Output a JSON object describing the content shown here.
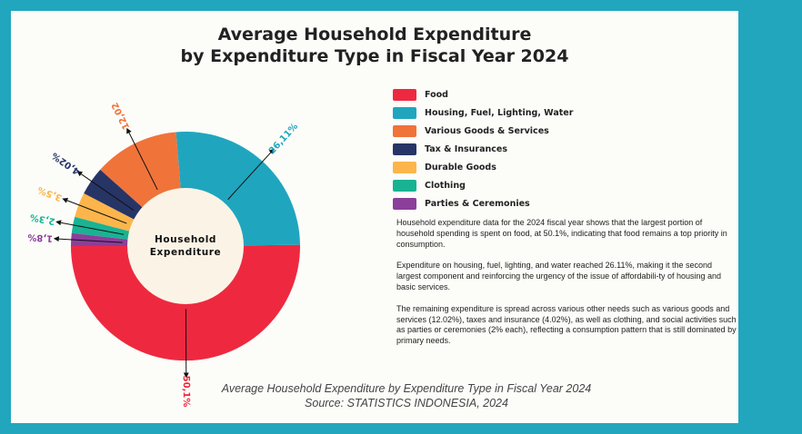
{
  "chart_data": {
    "type": "pie",
    "title_line1": "Average Household Expenditure",
    "title_line2": "by Expenditure Type in Fiscal Year 2024",
    "center_label_line1": "Household",
    "center_label_line2": "Expenditure",
    "slices": [
      {
        "name": "Food",
        "value": 50.1,
        "label": "50,1%",
        "color": "#ee293f"
      },
      {
        "name": "Housing, Fuel, Lighting, Water",
        "value": 26.11,
        "label": "26,11%",
        "color": "#1fa6be"
      },
      {
        "name": "Various Goods & Services",
        "value": 12.02,
        "label": "12,02",
        "color": "#f0733a"
      },
      {
        "name": "Tax & Insurances",
        "value": 4.02,
        "label": "4,02%",
        "color": "#263566"
      },
      {
        "name": "Durable Goods",
        "value": 3.5,
        "label": "3,5%",
        "color": "#fcb54b"
      },
      {
        "name": "Clothing",
        "value": 2.3,
        "label": "2,3%",
        "color": "#19b393"
      },
      {
        "name": "Parties & Ceremonies",
        "value": 1.8,
        "label": "1,8%",
        "color": "#8c3e9b"
      }
    ],
    "legend_position": "right"
  },
  "description": {
    "p1": "Household expenditure data for the 2024 fiscal year shows that the largest portion of household spending is spent on food, at 50.1%, indicating that food remains a top priority in consumption.",
    "p2": "Expenditure on housing, fuel, lighting, and water reached 26.11%, making it the second largest component and reinforcing the urgency of the issue of affordabili-ty of housing and basic services.",
    "p3": "The remaining expenditure is spread across various other needs such as various goods and services (12.02%), taxes and insurance (4.02%), as well as clothing, and social activities such as parties or ceremonies (2% each), reflecting a consumption pattern that is still dominated by primary needs."
  },
  "caption": {
    "line1": "Average Household Expenditure by Expenditure Type in Fiscal Year 2024",
    "line2": "Source: STATISTICS INDONESIA, 2024"
  }
}
